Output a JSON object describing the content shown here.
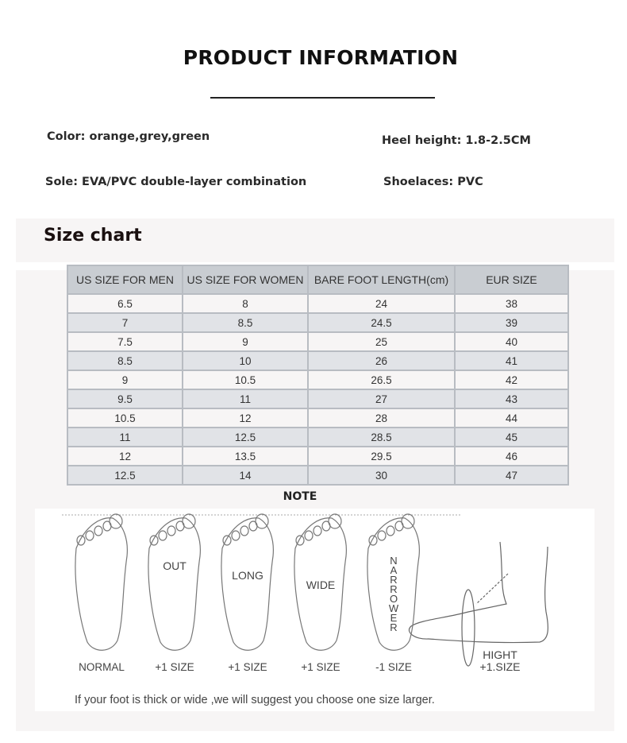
{
  "title": "PRODUCT INFORMATION",
  "specs": {
    "color": "Color: orange,grey,green",
    "heel": "Heel height: 1.8-2.5CM",
    "sole": "Sole: EVA/PVC double-layer combination",
    "laces": "Shoelaces: PVC"
  },
  "size_chart": {
    "heading": "Size chart",
    "columns": [
      "US SIZE FOR MEN",
      "US SIZE FOR WOMEN",
      "BARE FOOT LENGTH(cm)",
      "EUR SIZE"
    ],
    "rows": [
      [
        "6.5",
        "8",
        "24",
        "38"
      ],
      [
        "7",
        "8.5",
        "24.5",
        "39"
      ],
      [
        "7.5",
        "9",
        "25",
        "40"
      ],
      [
        "8.5",
        "10",
        "26",
        "41"
      ],
      [
        "9",
        "10.5",
        "26.5",
        "42"
      ],
      [
        "9.5",
        "11",
        "27",
        "43"
      ],
      [
        "10.5",
        "12",
        "28",
        "44"
      ],
      [
        "11",
        "12.5",
        "28.5",
        "45"
      ],
      [
        "12",
        "13.5",
        "29.5",
        "46"
      ],
      [
        "12.5",
        "14",
        "30",
        "47"
      ]
    ]
  },
  "note": {
    "heading": "NOTE",
    "feet": [
      {
        "inner": "",
        "label": "NORMAL"
      },
      {
        "inner": "OUT",
        "label": "+1 SIZE"
      },
      {
        "inner": "LONG",
        "label": "+1 SIZE"
      },
      {
        "inner": "WIDE",
        "label": "+1 SIZE"
      },
      {
        "inner": "NARROWER",
        "label": "-1 SIZE"
      }
    ],
    "side_label_1": "HIGHT",
    "side_label_2": "+1.SIZE",
    "tip": "If your foot is thick or wide ,we will suggest you  choose one size larger."
  }
}
